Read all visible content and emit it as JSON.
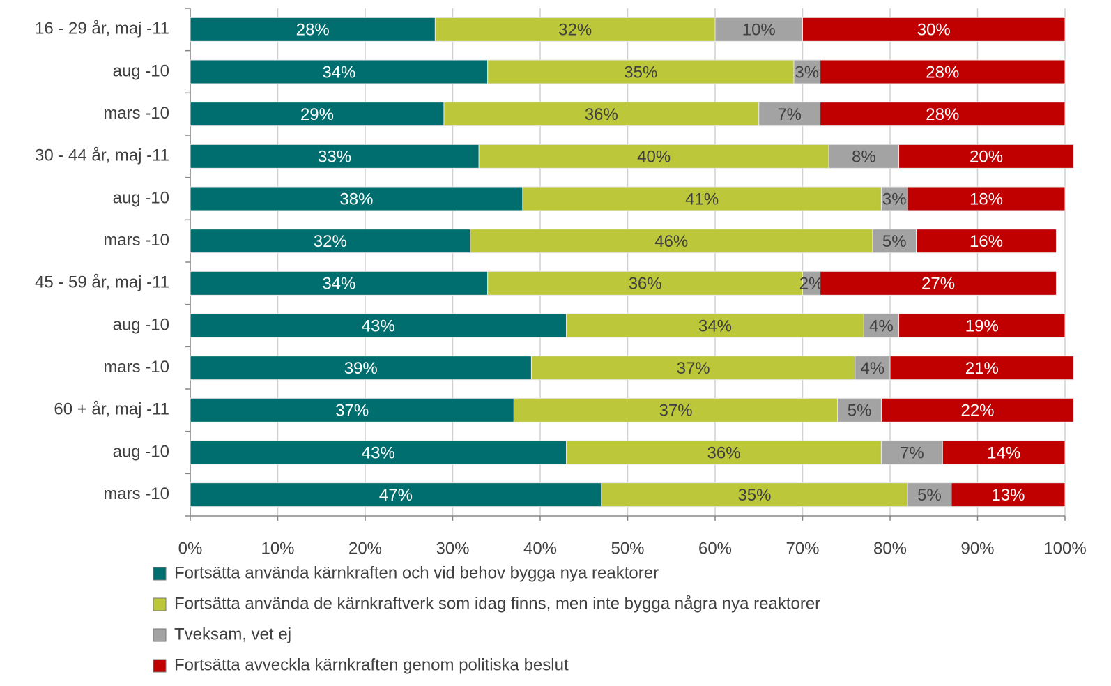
{
  "chart_data": {
    "type": "stacked-bar-horizontal",
    "categories": [
      "16 - 29 år, maj -11",
      "aug -10",
      "mars -10",
      "30 - 44 år, maj -11",
      "aug -10",
      "mars -10",
      "45 - 59 år, maj -11",
      "aug -10",
      "mars -10",
      "60 + år, maj -11",
      "aug -10",
      "mars -10"
    ],
    "series": [
      {
        "name": "Fortsätta använda kärnkraften och vid behov bygga nya reaktorer",
        "color": "#006e6e",
        "values": [
          28,
          34,
          29,
          33,
          38,
          32,
          34,
          43,
          39,
          37,
          43,
          47
        ],
        "value_labels": [
          "28%",
          "34%",
          "29%",
          "33%",
          "38%",
          "32%",
          "34%",
          "43%",
          "39%",
          "37%",
          "43%",
          "47%"
        ]
      },
      {
        "name": "Fortsätta använda de kärnkraftverk som idag finns, men inte bygga några nya reaktorer",
        "color": "#bcc83a",
        "values": [
          32,
          35,
          36,
          40,
          41,
          46,
          36,
          34,
          37,
          37,
          36,
          35
        ],
        "value_labels": [
          "32%",
          "35%",
          "36%",
          "40%",
          "41%",
          "46%",
          "36%",
          "34%",
          "37%",
          "37%",
          "36%",
          "35%"
        ]
      },
      {
        "name": "Tveksam, vet ej",
        "color": "#a3a3a3",
        "values": [
          10,
          3,
          7,
          8,
          3,
          5,
          2,
          4,
          4,
          5,
          7,
          5
        ],
        "value_labels": [
          "10%",
          "3%",
          "7%",
          "8%",
          "3%",
          "5%",
          "2%",
          "4%",
          "4%",
          "5%",
          "7%",
          "5%"
        ]
      },
      {
        "name": "Fortsätta avveckla kärnkraften genom politiska beslut",
        "color": "#c00000",
        "values": [
          30,
          28,
          28,
          20,
          18,
          16,
          27,
          19,
          21,
          22,
          14,
          13
        ],
        "value_labels": [
          "30%",
          "28%",
          "28%",
          "20%",
          "18%",
          "16%",
          "27%",
          "19%",
          "21%",
          "22%",
          "14%",
          "13%"
        ]
      }
    ],
    "xlim": [
      0,
      100
    ],
    "xticks": [
      {
        "value": 0,
        "label": "0%"
      },
      {
        "value": 10,
        "label": "10%"
      },
      {
        "value": 20,
        "label": "20%"
      },
      {
        "value": 30,
        "label": "30%"
      },
      {
        "value": 40,
        "label": "40%"
      },
      {
        "value": 50,
        "label": "50%"
      },
      {
        "value": 60,
        "label": "60%"
      },
      {
        "value": 70,
        "label": "70%"
      },
      {
        "value": 80,
        "label": "80%"
      },
      {
        "value": 90,
        "label": "90%"
      },
      {
        "value": 100,
        "label": "100%"
      }
    ],
    "grid": true,
    "legend": "bottom"
  }
}
